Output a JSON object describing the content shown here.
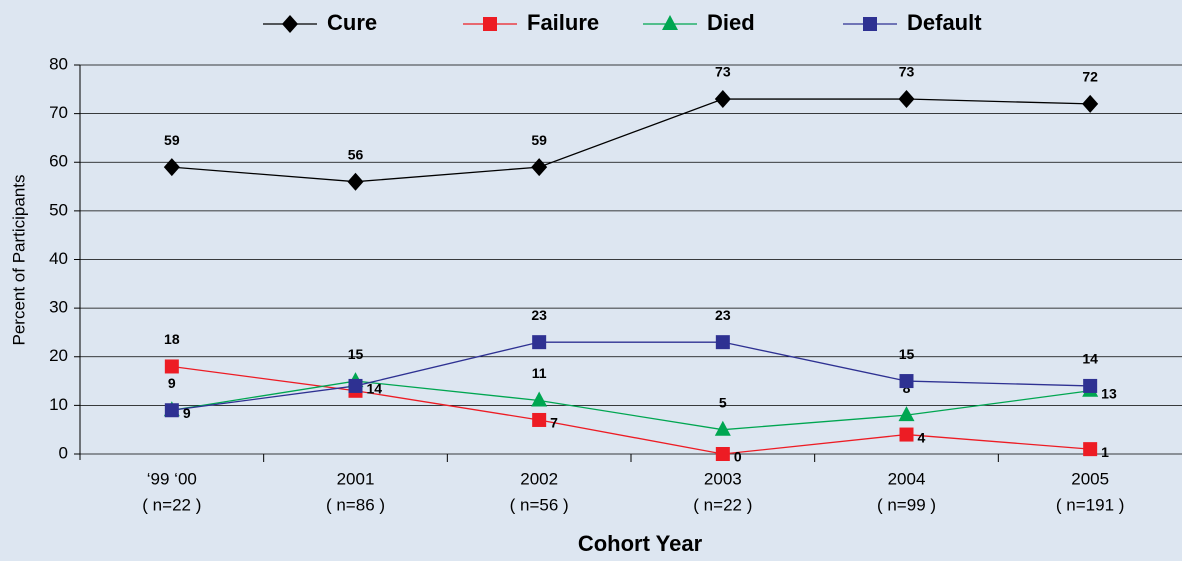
{
  "chart_data": {
    "type": "line",
    "x_title": "Cohort Year",
    "y_title": "Percent of Participants",
    "categories": [
      "‘99 ‘00",
      "2001",
      "2002",
      "2003",
      "2004",
      "2005"
    ],
    "sample_sizes": [
      "( n=22 )",
      "( n=86 )",
      "( n=56 )",
      "( n=22 )",
      "( n=99 )",
      "( n=191 )"
    ],
    "ylim": [
      0,
      80
    ],
    "yticks": [
      0,
      10,
      20,
      30,
      40,
      50,
      60,
      70,
      80
    ],
    "grid": true,
    "legend": "top",
    "series": [
      {
        "name": "Cure",
        "color": "#000000",
        "marker": "diamond",
        "values": [
          59,
          56,
          59,
          73,
          73,
          72
        ]
      },
      {
        "name": "Failure",
        "color": "#ed1c24",
        "marker": "square",
        "values": [
          18,
          13,
          7,
          0,
          4,
          1
        ],
        "value_labels": [
          "18",
          null,
          "7",
          "0",
          "4",
          "1"
        ]
      },
      {
        "name": "Died",
        "color": "#00a651",
        "marker": "triangle",
        "values": [
          9,
          15,
          11,
          5,
          8,
          13
        ]
      },
      {
        "name": "Default",
        "color": "#2e3192",
        "marker": "square",
        "values": [
          9,
          14,
          23,
          23,
          15,
          14
        ]
      }
    ]
  }
}
